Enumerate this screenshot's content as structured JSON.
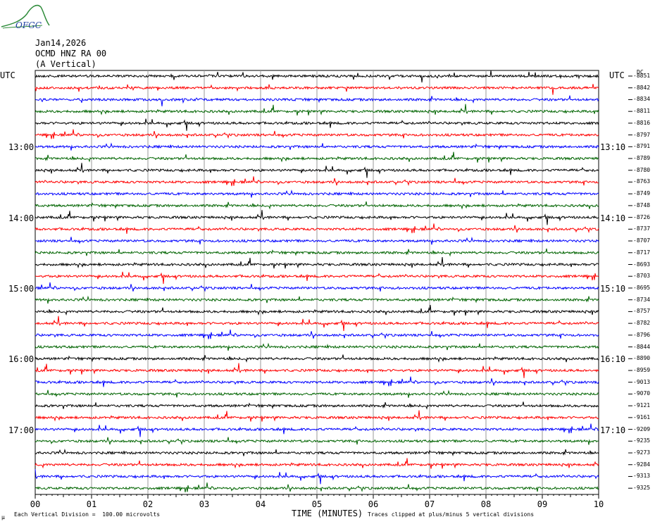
{
  "logo": {
    "text": "OFGC"
  },
  "header": {
    "date": "Jan14,2026",
    "station": "OCMD HNZ RA 00",
    "component": "(A Vertical)"
  },
  "left_axis_label": "UTC",
  "right_axis_label": "UTC",
  "dc_label": "DC",
  "colors": [
    "#000000",
    "#ff0000",
    "#0000ff",
    "#006400"
  ],
  "chart_data": {
    "type": "line",
    "title": "",
    "xlabel": "TIME (MINUTES)",
    "ylabel": "",
    "x_ticks": [
      "00",
      "01",
      "02",
      "03",
      "04",
      "05",
      "06",
      "07",
      "08",
      "09",
      "10"
    ],
    "xlim": [
      0,
      10
    ],
    "left_hour_labels": [
      "13:00",
      "14:00",
      "15:00",
      "16:00",
      "17:00"
    ],
    "right_hour_labels": [
      "13:10",
      "14:10",
      "15:10",
      "16:10",
      "17:10"
    ],
    "trace_dc_values": [
      "-8851",
      "-8842",
      "-8834",
      "-8811",
      "-8816",
      "-8797",
      "-8791",
      "-8789",
      "-8780",
      "-8763",
      "-8749",
      "-8748",
      "-8726",
      "-8737",
      "-8707",
      "-8717",
      "-8693",
      "-8703",
      "-8695",
      "-8734",
      "-8757",
      "-8782",
      "-8796",
      "-8844",
      "-8890",
      "-8959",
      "-9013",
      "-9070",
      "-9121",
      "-9161",
      "-9209",
      "-9235",
      "-9273",
      "-9284",
      "-9313",
      "-9325"
    ],
    "grid": true
  },
  "footer": {
    "scale_note": "Each Vertical Division =  100.00 microvolts",
    "clip_note": "Traces clipped at plus/minus 5 vertical divisions",
    "corner_mark": "μ"
  }
}
